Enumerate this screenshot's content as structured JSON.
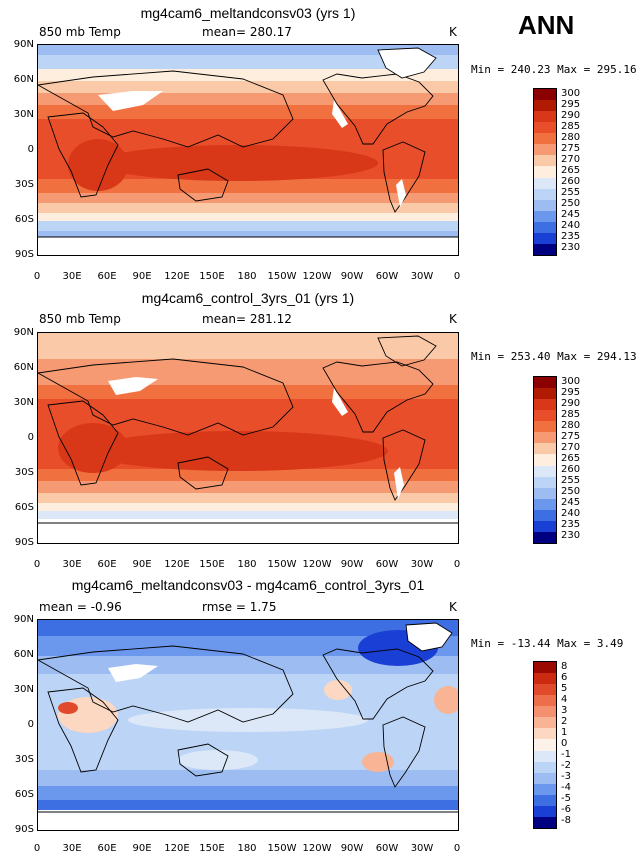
{
  "header": {
    "season_label": "ANN"
  },
  "x_ticks": [
    "0",
    "30E",
    "60E",
    "90E",
    "120E",
    "150E",
    "180",
    "150W",
    "120W",
    "90W",
    "60W",
    "30W",
    "0"
  ],
  "y_ticks": [
    "90N",
    "60N",
    "30N",
    "0",
    "30S",
    "60S",
    "90S"
  ],
  "abs_levels": [
    "300",
    "295",
    "290",
    "285",
    "280",
    "275",
    "270",
    "265",
    "260",
    "255",
    "250",
    "245",
    "240",
    "235",
    "230"
  ],
  "abs_colors": [
    "#8b0000",
    "#b01a00",
    "#d83818",
    "#e84e2a",
    "#f07040",
    "#f59a72",
    "#fac9a8",
    "#fdeedd",
    "#dce8f8",
    "#bcd4f6",
    "#9cbcf2",
    "#6b98ec",
    "#3d6ee2",
    "#1a3fd4",
    "#000080"
  ],
  "diff_levels": [
    "8",
    "6",
    "5",
    "4",
    "3",
    "2",
    "1",
    "0",
    "-1",
    "-2",
    "-3",
    "-4",
    "-5",
    "-6",
    "-8"
  ],
  "diff_colors": [
    "#9a0a00",
    "#cc2a10",
    "#e04a2a",
    "#ec6e4a",
    "#f49070",
    "#f8b494",
    "#fcd8c2",
    "#fdf2ea",
    "#dce8f8",
    "#bcd4f6",
    "#9cbcf2",
    "#6b98ec",
    "#3d6ee2",
    "#1a3fd4",
    "#000080"
  ],
  "panels": [
    {
      "title": "mg4cam6_meltandconsv03 (yrs 1)",
      "left_label": "850 mb Temp",
      "center_label": "mean= 280.17",
      "right_label": "K",
      "minmax": "Min = 240.23 Max = 295.16"
    },
    {
      "title": "mg4cam6_control_3yrs_01 (yrs 1)",
      "left_label": "850 mb Temp",
      "center_label": "mean= 281.12",
      "right_label": "K",
      "minmax": "Min = 253.40 Max = 294.13"
    },
    {
      "title": "mg4cam6_meltandconsv03 - mg4cam6_control_3yrs_01",
      "left_label": "mean =  -0.96",
      "center_label": "rmse =    1.75",
      "right_label": "K",
      "minmax": "Min = -13.44 Max =    3.49"
    }
  ]
}
